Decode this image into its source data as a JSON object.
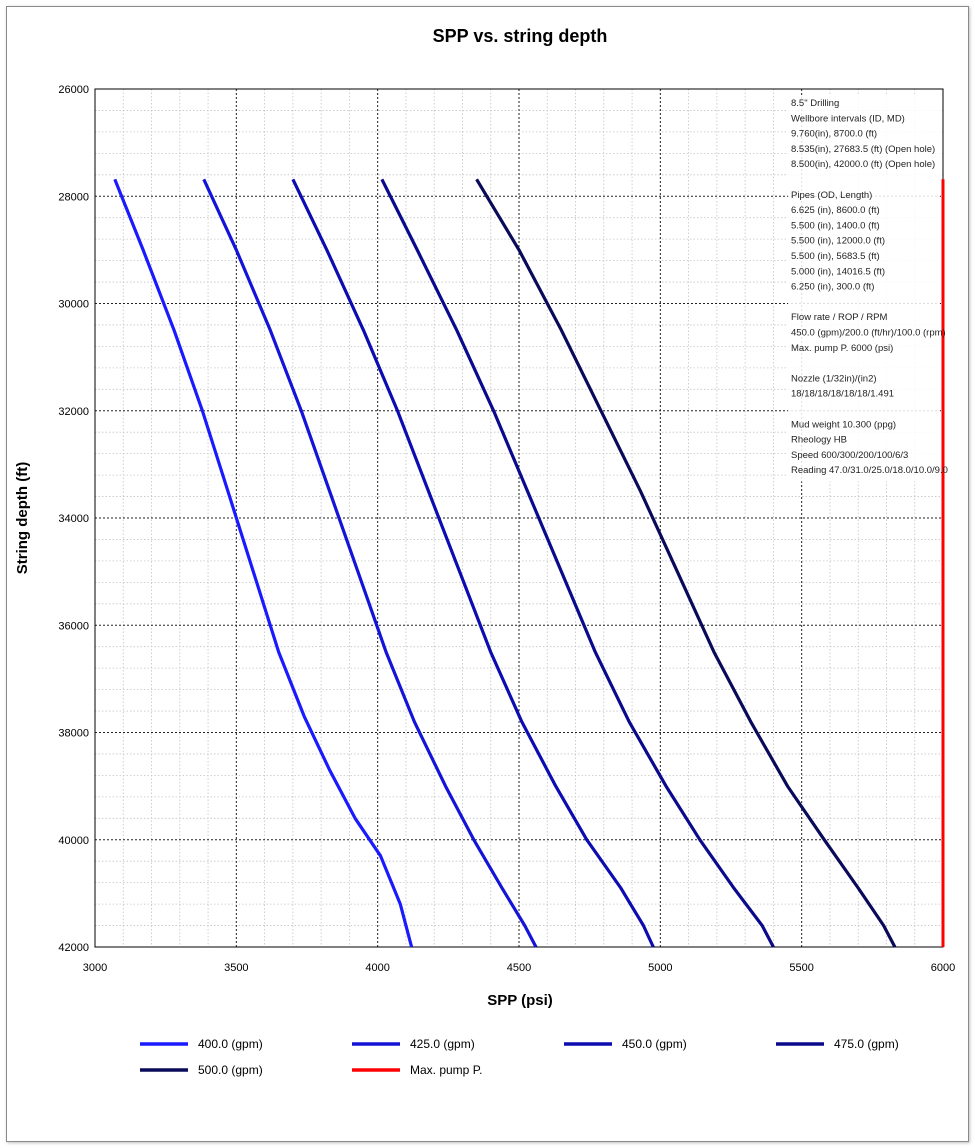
{
  "chart_data": {
    "type": "line",
    "title": "SPP vs. string depth",
    "xlabel": "SPP (psi)",
    "ylabel": "String depth (ft)",
    "xlim": [
      3000,
      6000
    ],
    "ylim": [
      26000,
      42000
    ],
    "y_inverted": true,
    "xticks": [
      3000,
      3500,
      4000,
      4500,
      5000,
      5500,
      6000
    ],
    "yticks": [
      26000,
      28000,
      30000,
      32000,
      34000,
      36000,
      38000,
      40000,
      42000
    ],
    "grid": true,
    "legend_position": "bottom",
    "series": [
      {
        "name": "400.0 (gpm)",
        "color": "#1a1aff",
        "points": [
          [
            3070,
            27683.5
          ],
          [
            3170,
            29000
          ],
          [
            3280,
            30500
          ],
          [
            3380,
            32000
          ],
          [
            3470,
            33500
          ],
          [
            3560,
            35000
          ],
          [
            3650,
            36500
          ],
          [
            3740,
            37700
          ],
          [
            3830,
            38700
          ],
          [
            3920,
            39600
          ],
          [
            4010,
            40300
          ],
          [
            4080,
            41200
          ],
          [
            4120,
            42000
          ]
        ]
      },
      {
        "name": "425.0 (gpm)",
        "color": "#1414d8",
        "points": [
          [
            3385,
            27683.5
          ],
          [
            3500,
            29000
          ],
          [
            3620,
            30500
          ],
          [
            3730,
            32000
          ],
          [
            3830,
            33500
          ],
          [
            3930,
            35000
          ],
          [
            4030,
            36500
          ],
          [
            4130,
            37800
          ],
          [
            4240,
            39000
          ],
          [
            4340,
            40000
          ],
          [
            4440,
            40900
          ],
          [
            4520,
            41600
          ],
          [
            4560,
            42000
          ]
        ]
      },
      {
        "name": "450.0 (gpm)",
        "color": "#0c0cb0",
        "points": [
          [
            3700,
            27683.5
          ],
          [
            3820,
            29000
          ],
          [
            3950,
            30500
          ],
          [
            4070,
            32000
          ],
          [
            4180,
            33500
          ],
          [
            4290,
            35000
          ],
          [
            4400,
            36500
          ],
          [
            4510,
            37800
          ],
          [
            4630,
            39000
          ],
          [
            4740,
            40000
          ],
          [
            4860,
            40900
          ],
          [
            4940,
            41600
          ],
          [
            4975,
            42000
          ]
        ]
      },
      {
        "name": "475.0 (gpm)",
        "color": "#0a0a8c",
        "points": [
          [
            4015,
            27683.5
          ],
          [
            4140,
            29000
          ],
          [
            4280,
            30500
          ],
          [
            4410,
            32000
          ],
          [
            4530,
            33500
          ],
          [
            4650,
            35000
          ],
          [
            4770,
            36500
          ],
          [
            4890,
            37800
          ],
          [
            5020,
            39000
          ],
          [
            5140,
            40000
          ],
          [
            5260,
            40900
          ],
          [
            5360,
            41600
          ],
          [
            5400,
            42000
          ]
        ]
      },
      {
        "name": "500.0 (gpm)",
        "color": "#0a0a5a",
        "points": [
          [
            4350,
            27683.5
          ],
          [
            4500,
            29000
          ],
          [
            4650,
            30500
          ],
          [
            4790,
            32000
          ],
          [
            4930,
            33500
          ],
          [
            5060,
            35000
          ],
          [
            5190,
            36500
          ],
          [
            5320,
            37800
          ],
          [
            5450,
            39000
          ],
          [
            5580,
            40000
          ],
          [
            5700,
            40900
          ],
          [
            5790,
            41600
          ],
          [
            5830,
            42000
          ]
        ]
      },
      {
        "name": "Max. pump P.",
        "color": "#ff0000",
        "points": [
          [
            6000,
            27683.5
          ],
          [
            6000,
            42000
          ]
        ]
      }
    ]
  },
  "info_lines": [
    "8.5\" Drilling",
    "Wellbore intervals (ID, MD)",
    "9.760(in), 8700.0 (ft)",
    "8.535(in), 27683.5 (ft) (Open hole)",
    "8.500(in), 42000.0 (ft) (Open hole)",
    "",
    "Pipes (OD, Length)",
    "6.625 (in), 8600.0 (ft)",
    "5.500 (in), 1400.0 (ft)",
    "5.500 (in), 12000.0 (ft)",
    "5.500 (in), 5683.5 (ft)",
    "5.000 (in), 14016.5 (ft)",
    "6.250 (in), 300.0 (ft)",
    "",
    "Flow rate / ROP / RPM",
    "450.0 (gpm)/200.0 (ft/hr)/100.0 (rpm)",
    "Max. pump P. 6000 (psi)",
    "",
    "Nozzle (1/32in)/(in2)",
    "18/18/18/18/18/18/1.491",
    "",
    "Mud weight 10.300 (ppg)",
    "Rheology HB",
    "Speed 600/300/200/100/6/3",
    "Reading 47.0/31.0/25.0/18.0/10.0/9.0"
  ]
}
